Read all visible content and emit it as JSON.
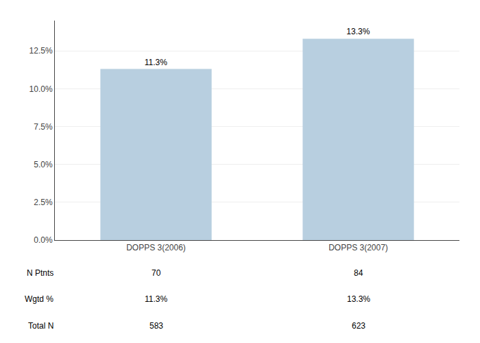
{
  "chart_data": {
    "type": "bar",
    "categories": [
      "DOPPS 3(2006)",
      "DOPPS 3(2007)"
    ],
    "values": [
      11.3,
      13.3
    ],
    "value_labels": [
      "11.3%",
      "13.3%"
    ],
    "data_labels": true,
    "color": "#b8cfe0",
    "ylim": [
      0,
      14.5
    ],
    "yticks": [
      {
        "value": 0,
        "label": "0.0%"
      },
      {
        "value": 2.5,
        "label": "2.5%"
      },
      {
        "value": 5.0,
        "label": "5.0%"
      },
      {
        "value": 7.5,
        "label": "7.5%"
      },
      {
        "value": 10.0,
        "label": "10.0%"
      },
      {
        "value": 12.5,
        "label": "12.5%"
      }
    ],
    "grid": true,
    "table": {
      "row_labels": [
        "N Ptnts",
        "Wgtd %",
        "Total N"
      ],
      "columns": [
        [
          "70",
          "11.3%",
          "583"
        ],
        [
          "84",
          "13.3%",
          "623"
        ]
      ]
    }
  }
}
